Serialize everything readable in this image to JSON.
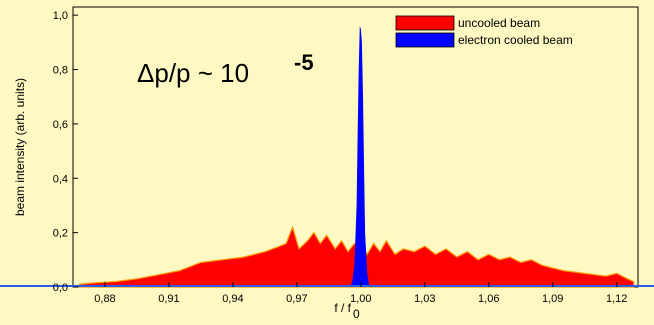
{
  "chart_data": {
    "type": "area",
    "xlabel": "f / f",
    "xlabel_sub": "0",
    "ylabel": "beam intensity (arb. units)",
    "xlim": [
      0.865,
      1.13
    ],
    "ylim": [
      0.0,
      1.03
    ],
    "x_ticks": [
      {
        "value": 0.88,
        "label": "0,88"
      },
      {
        "value": 0.91,
        "label": "0,91"
      },
      {
        "value": 0.94,
        "label": "0,94"
      },
      {
        "value": 0.97,
        "label": "0,97"
      },
      {
        "value": 1.0,
        "label": "1,00"
      },
      {
        "value": 1.03,
        "label": "1,03"
      },
      {
        "value": 1.06,
        "label": "1,06"
      },
      {
        "value": 1.09,
        "label": "1,09"
      },
      {
        "value": 1.12,
        "label": "1,12"
      }
    ],
    "y_ticks": [
      {
        "value": 0.0,
        "label": "0,0"
      },
      {
        "value": 0.2,
        "label": "0,2"
      },
      {
        "value": 0.4,
        "label": "0,4"
      },
      {
        "value": 0.6,
        "label": "0,6"
      },
      {
        "value": 0.8,
        "label": "0,8"
      },
      {
        "value": 1.0,
        "label": "1,0"
      }
    ],
    "annotation": {
      "base": "Δp/p ~ 10",
      "exponent": "-5"
    },
    "legend_position": "top-right",
    "grid": false,
    "series": [
      {
        "name": "uncooled beam",
        "color": "#ff0000",
        "edge_color": "#ff9900",
        "x": [
          0.868,
          0.875,
          0.885,
          0.895,
          0.905,
          0.915,
          0.925,
          0.935,
          0.945,
          0.955,
          0.962,
          0.965,
          0.968,
          0.971,
          0.975,
          0.978,
          0.981,
          0.984,
          0.988,
          0.991,
          0.994,
          0.997,
          0.999,
          1.0,
          1.001,
          1.003,
          1.006,
          1.009,
          1.012,
          1.016,
          1.02,
          1.025,
          1.03,
          1.035,
          1.04,
          1.045,
          1.05,
          1.055,
          1.06,
          1.065,
          1.07,
          1.075,
          1.08,
          1.085,
          1.09,
          1.095,
          1.1,
          1.105,
          1.11,
          1.115,
          1.12,
          1.125,
          1.128
        ],
        "y": [
          0.01,
          0.015,
          0.02,
          0.03,
          0.045,
          0.06,
          0.09,
          0.1,
          0.11,
          0.13,
          0.15,
          0.16,
          0.22,
          0.14,
          0.17,
          0.2,
          0.16,
          0.19,
          0.14,
          0.17,
          0.13,
          0.16,
          0.15,
          0.15,
          0.15,
          0.12,
          0.16,
          0.13,
          0.17,
          0.12,
          0.14,
          0.13,
          0.15,
          0.12,
          0.14,
          0.11,
          0.13,
          0.1,
          0.12,
          0.1,
          0.11,
          0.09,
          0.1,
          0.08,
          0.07,
          0.06,
          0.055,
          0.05,
          0.045,
          0.04,
          0.05,
          0.03,
          0.02
        ]
      },
      {
        "name": "electron cooled beam",
        "color": "#0000ff",
        "x": [
          0.995,
          0.996,
          0.997,
          0.998,
          0.9985,
          0.999,
          0.9995,
          1.0,
          1.0005,
          1.001,
          1.0015,
          1.002,
          1.003,
          1.004
        ],
        "y": [
          0.0,
          0.02,
          0.08,
          0.3,
          0.55,
          0.8,
          0.96,
          0.95,
          0.9,
          0.7,
          0.45,
          0.2,
          0.05,
          0.0
        ]
      }
    ]
  }
}
